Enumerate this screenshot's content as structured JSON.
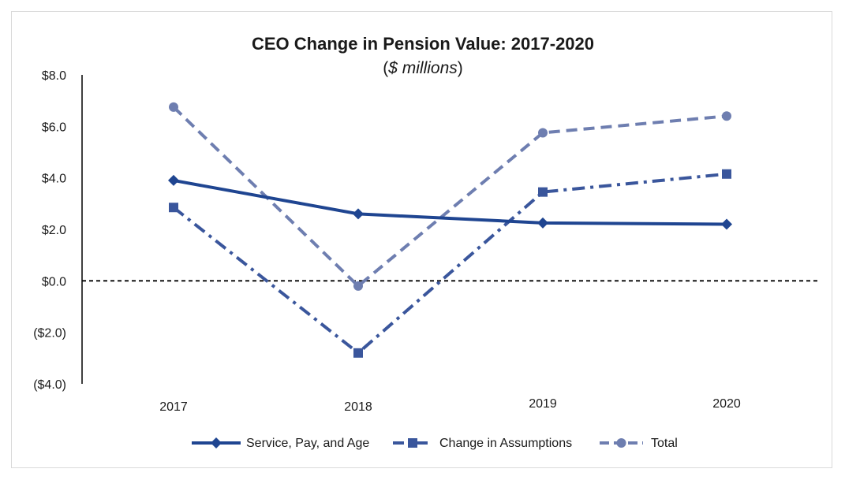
{
  "chart_data": {
    "type": "line",
    "title": "CEO Change in Pension Value: 2017-2020",
    "subtitle_open": "(",
    "subtitle_italic": "$ millions",
    "subtitle_close": ")",
    "categories": [
      "2017",
      "2018",
      "2019",
      "2020"
    ],
    "ylim": [
      -4,
      8
    ],
    "yticks": [
      8,
      6,
      4,
      2,
      0,
      -2,
      -4
    ],
    "ytick_labels": [
      "$8.0",
      "$6.0",
      "$4.0",
      "$2.0",
      "$0.0",
      "($2.0)",
      "($4.0)"
    ],
    "zero_line": "dashed",
    "series": [
      {
        "name": "Service, Pay, and Age",
        "values": [
          3.9,
          2.6,
          2.25,
          2.2
        ],
        "color": "#1f4591",
        "dash": "solid",
        "marker": "diamond"
      },
      {
        "name": "Change in Assumptions",
        "values": [
          2.85,
          -2.8,
          3.45,
          4.15
        ],
        "color": "#3a569c",
        "dash": "dashdot",
        "marker": "square"
      },
      {
        "name": "Total",
        "values": [
          6.75,
          -0.2,
          5.75,
          6.4
        ],
        "color": "#6e7eb0",
        "dash": "dashed",
        "marker": "circle"
      }
    ],
    "legend_position": "bottom"
  }
}
